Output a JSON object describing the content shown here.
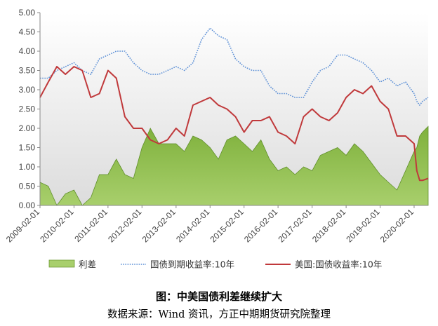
{
  "chart_data": {
    "type": "area",
    "yticks": [
      "0.00",
      "0.50",
      "1.00",
      "1.50",
      "2.00",
      "2.50",
      "3.00",
      "3.50",
      "4.00",
      "4.50",
      "5.00"
    ],
    "ylim": [
      0,
      5
    ],
    "xticks": [
      "2009-02-01",
      "2010-02-01",
      "2011-02-01",
      "2012-02-01",
      "2013-02-01",
      "2014-02-01",
      "2015-02-01",
      "2016-02-01",
      "2017-02-01",
      "2018-02-01",
      "2019-02-01",
      "2020-02-01"
    ],
    "xlim": [
      "2009-02-01",
      "2020-07-01"
    ],
    "x": [
      "2009-02-01",
      "2009-05-01",
      "2009-08-01",
      "2009-11-01",
      "2010-02-01",
      "2010-05-01",
      "2010-08-01",
      "2010-11-01",
      "2011-02-01",
      "2011-05-01",
      "2011-08-01",
      "2011-11-01",
      "2012-02-01",
      "2012-05-01",
      "2012-08-01",
      "2012-11-01",
      "2013-02-01",
      "2013-05-01",
      "2013-08-01",
      "2013-11-01",
      "2014-02-01",
      "2014-05-01",
      "2014-08-01",
      "2014-11-01",
      "2015-02-01",
      "2015-05-01",
      "2015-08-01",
      "2015-11-01",
      "2016-02-01",
      "2016-05-01",
      "2016-08-01",
      "2016-11-01",
      "2017-02-01",
      "2017-05-01",
      "2017-08-01",
      "2017-11-01",
      "2018-02-01",
      "2018-05-01",
      "2018-08-01",
      "2018-11-01",
      "2019-02-01",
      "2019-05-01",
      "2019-08-01",
      "2019-11-01",
      "2020-02-01",
      "2020-03-01",
      "2020-04-01",
      "2020-05-01",
      "2020-07-01"
    ],
    "series": [
      {
        "name": "利差",
        "kind": "area",
        "color": "#8bbd46",
        "values": [
          0.6,
          0.5,
          0.0,
          0.3,
          0.4,
          0.0,
          0.2,
          0.8,
          0.8,
          1.2,
          0.8,
          0.7,
          1.5,
          2.0,
          1.6,
          1.6,
          1.6,
          1.4,
          1.8,
          1.7,
          1.5,
          1.2,
          1.7,
          1.8,
          1.6,
          1.4,
          1.7,
          1.2,
          0.9,
          1.0,
          0.8,
          1.0,
          0.9,
          1.3,
          1.4,
          1.5,
          1.3,
          1.6,
          1.4,
          1.1,
          0.8,
          0.6,
          0.4,
          0.9,
          1.4,
          1.5,
          1.8,
          1.9,
          2.05
        ]
      },
      {
        "name": "国债到期收益率:10年",
        "kind": "line-dotted",
        "color": "#5b8fd6",
        "values": [
          3.3,
          3.3,
          3.5,
          3.6,
          3.7,
          3.5,
          3.4,
          3.8,
          3.9,
          4.0,
          4.0,
          3.7,
          3.5,
          3.4,
          3.4,
          3.5,
          3.6,
          3.5,
          3.7,
          4.3,
          4.6,
          4.4,
          4.3,
          3.8,
          3.6,
          3.5,
          3.5,
          3.1,
          2.9,
          2.9,
          2.8,
          2.8,
          3.2,
          3.5,
          3.6,
          3.9,
          3.9,
          3.8,
          3.7,
          3.5,
          3.2,
          3.3,
          3.1,
          3.2,
          2.9,
          2.7,
          2.6,
          2.7,
          2.8
        ]
      },
      {
        "name": "美国:国债收益率:10年",
        "kind": "line",
        "color": "#c0393b",
        "values": [
          2.8,
          3.2,
          3.6,
          3.4,
          3.6,
          3.5,
          2.8,
          2.9,
          3.5,
          3.3,
          2.3,
          2.0,
          2.0,
          1.7,
          1.6,
          1.7,
          2.0,
          1.8,
          2.6,
          2.7,
          2.8,
          2.6,
          2.5,
          2.3,
          1.9,
          2.2,
          2.2,
          2.3,
          1.9,
          1.8,
          1.6,
          2.3,
          2.5,
          2.3,
          2.2,
          2.4,
          2.8,
          3.0,
          2.9,
          3.1,
          2.7,
          2.5,
          1.8,
          1.8,
          1.6,
          0.9,
          0.65,
          0.65,
          0.7
        ]
      }
    ],
    "legend": [
      {
        "label": "利差",
        "kind": "area",
        "color": "#8bbd46"
      },
      {
        "label": "国债到期收益率:10年",
        "kind": "line-dotted",
        "color": "#5b8fd6"
      },
      {
        "label": "美国:国债收益率:10年",
        "kind": "line",
        "color": "#c0393b"
      }
    ],
    "legend_position": "bottom",
    "grid": false
  },
  "caption": {
    "title": "图：中美国债利差继续扩大",
    "source": "数据来源：Wind 资讯，方正中期期货研究院整理"
  }
}
